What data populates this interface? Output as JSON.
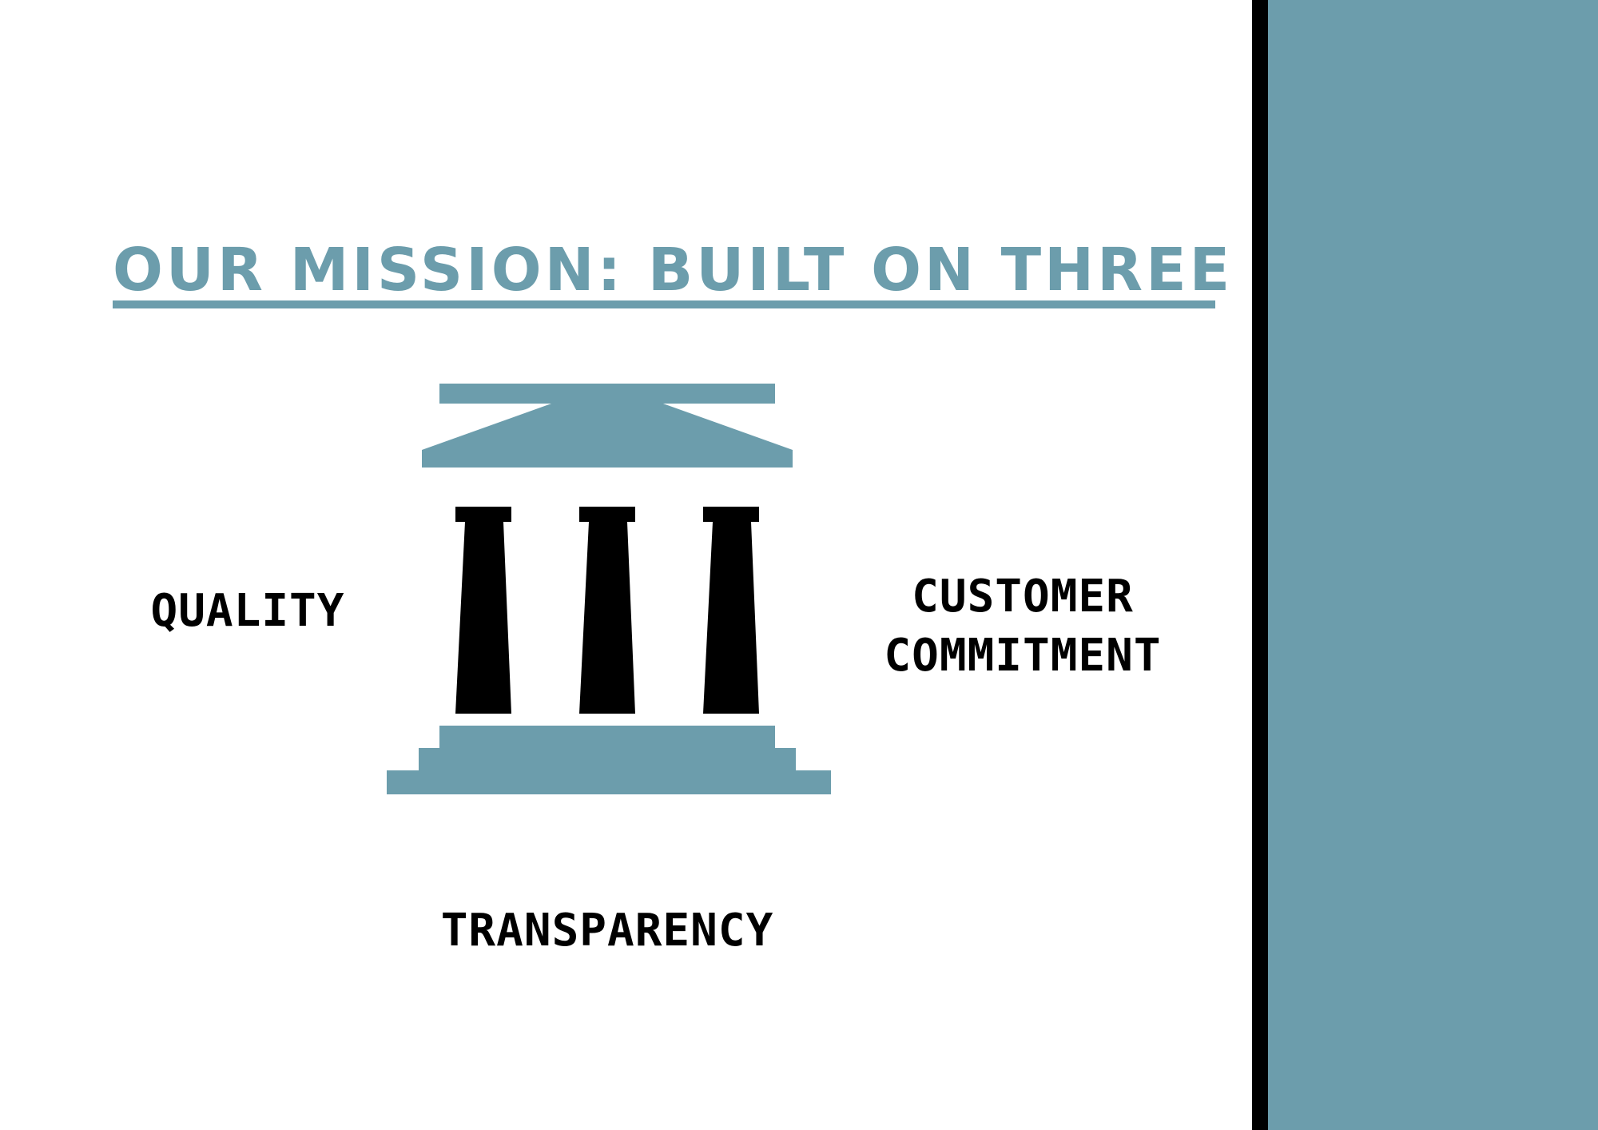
{
  "title": "OUR MISSION: BUILT ON THREE PILLARS",
  "pillars": {
    "left": "QUALITY",
    "right_line1": "CUSTOMER",
    "right_line2": "COMMITMENT",
    "bottom": "TRANSPARENCY"
  },
  "icon": "greek-temple-icon",
  "colors": {
    "accent": "#6c9dac",
    "text": "#000000",
    "divider": "#000000",
    "background": "#ffffff"
  }
}
